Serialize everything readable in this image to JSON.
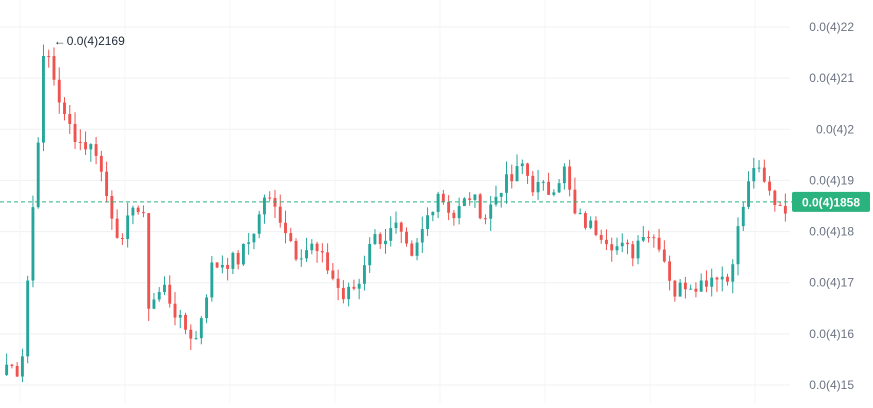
{
  "chart_data": {
    "type": "candlestick",
    "price_axis": {
      "position": "right",
      "ticks": [
        {
          "value": 2.2e-05,
          "label": "0.0(4)22"
        },
        {
          "value": 2.1e-05,
          "label": "0.0(4)21"
        },
        {
          "value": 2e-05,
          "label": "0.0(4)2"
        },
        {
          "value": 1.9e-05,
          "label": "0.0(4)19"
        },
        {
          "value": 1.8e-05,
          "label": "0.0(4)18"
        },
        {
          "value": 1.7e-05,
          "label": "0.0(4)17"
        },
        {
          "value": 1.6e-05,
          "label": "0.0(4)16"
        },
        {
          "value": 1.5e-05,
          "label": "0.0(4)15"
        }
      ],
      "ylim": [
        1.49e-05,
        2.25e-05
      ]
    },
    "current_price": {
      "value": 1.858e-05,
      "label": "0.0(4)1858"
    },
    "max_marker": {
      "value": 2.169e-05,
      "label": "0.0(4)2169",
      "candle_index": 8
    },
    "grid": true,
    "colors": {
      "up": "#26a69a",
      "down": "#ef5350",
      "current_price": "#2bb37f",
      "grid": "#eef0f3",
      "axis_text": "#6b7280"
    },
    "close_path": [
      [
        0,
        15.4
      ],
      [
        2,
        15.3
      ],
      [
        3,
        15.65
      ],
      [
        7,
        21.3
      ],
      [
        8,
        21.4
      ],
      [
        11,
        20.2
      ],
      [
        14,
        19.75
      ],
      [
        17,
        19.6
      ],
      [
        19,
        18.7
      ],
      [
        22,
        17.7
      ],
      [
        24,
        18.6
      ],
      [
        26,
        18.2
      ],
      [
        27,
        16.6
      ],
      [
        30,
        16.9
      ],
      [
        33,
        16.2
      ],
      [
        36,
        15.9
      ],
      [
        39,
        17.3
      ],
      [
        41,
        17.4
      ],
      [
        44,
        17.45
      ],
      [
        46,
        17.8
      ],
      [
        48,
        18.3
      ],
      [
        49,
        18.7
      ],
      [
        52,
        18.3
      ],
      [
        55,
        17.6
      ],
      [
        58,
        17.7
      ],
      [
        61,
        17.3
      ],
      [
        64,
        16.7
      ],
      [
        67,
        17.0
      ],
      [
        69,
        17.85
      ],
      [
        72,
        17.9
      ],
      [
        74,
        18.05
      ],
      [
        77,
        17.4
      ],
      [
        80,
        18.3
      ],
      [
        82,
        18.8
      ],
      [
        85,
        18.3
      ],
      [
        88,
        18.7
      ],
      [
        91,
        18.3
      ],
      [
        94,
        18.9
      ],
      [
        96,
        19.0
      ],
      [
        98,
        19.3
      ],
      [
        100,
        18.9
      ],
      [
        103,
        18.8
      ],
      [
        106,
        19.2
      ],
      [
        108,
        18.3
      ],
      [
        111,
        18.1
      ],
      [
        113,
        18.0
      ],
      [
        116,
        17.7
      ],
      [
        119,
        17.6
      ],
      [
        121,
        18.05
      ],
      [
        124,
        17.8
      ],
      [
        127,
        16.8
      ],
      [
        129,
        17.0
      ],
      [
        132,
        17.0
      ],
      [
        135,
        17.2
      ],
      [
        137,
        17.05
      ],
      [
        140,
        18.5
      ],
      [
        142,
        19.3
      ],
      [
        144,
        18.9
      ],
      [
        146,
        18.6
      ],
      [
        148,
        18.5
      ]
    ]
  }
}
